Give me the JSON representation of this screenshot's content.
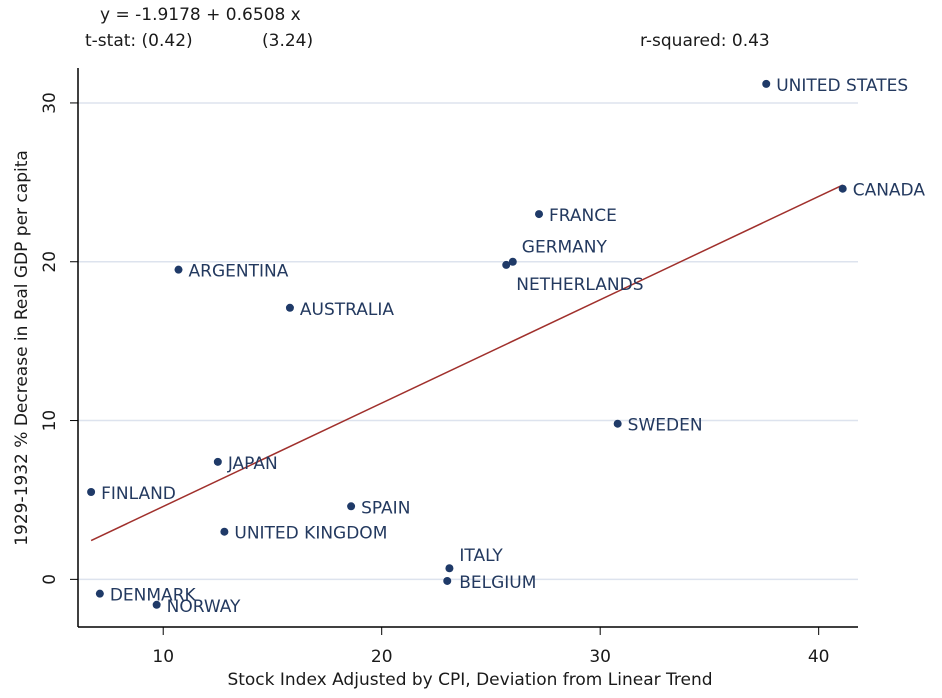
{
  "chart_data": {
    "type": "scatter",
    "annotations": {
      "equation": "y = -1.9178 + 0.6508 x",
      "tstat_intercept": "t-stat: (0.42)",
      "tstat_slope": "(3.24)",
      "r_squared": "r-squared: 0.43"
    },
    "fit": {
      "intercept": -1.9178,
      "slope": 0.6508,
      "color": "#a0302c"
    },
    "xlabel": "Stock Index Adjusted by CPI, Deviation from Linear Trend",
    "ylabel": "1929-1932 % Decrease in Real GDP per capita",
    "labels": [
      "UNITED STATES",
      "CANADA",
      "FRANCE",
      "GERMANY",
      "NETHERLANDS",
      "ARGENTINA",
      "AUSTRALIA",
      "SWEDEN",
      "JAPAN",
      "FINLAND",
      "SPAIN",
      "UNITED KINGDOM",
      "ITALY",
      "BELGIUM",
      "DENMARK",
      "NORWAY"
    ],
    "x": [
      37.6,
      41.1,
      27.2,
      26.0,
      25.7,
      10.7,
      15.8,
      30.8,
      12.5,
      6.7,
      18.6,
      12.8,
      23.1,
      23.0,
      7.1,
      9.7
    ],
    "values": [
      31.2,
      24.6,
      23.0,
      20.0,
      19.8,
      19.5,
      17.1,
      9.8,
      7.4,
      5.5,
      4.6,
      3.0,
      0.7,
      -0.1,
      -0.9,
      -1.6
    ],
    "color": "#1f3a68",
    "xlim": [
      6.1,
      41.8
    ],
    "ylim": [
      -3,
      32.2
    ],
    "xticks": [
      10,
      20,
      30,
      40
    ],
    "yticks": [
      0,
      10,
      20,
      30
    ],
    "grid": true
  }
}
